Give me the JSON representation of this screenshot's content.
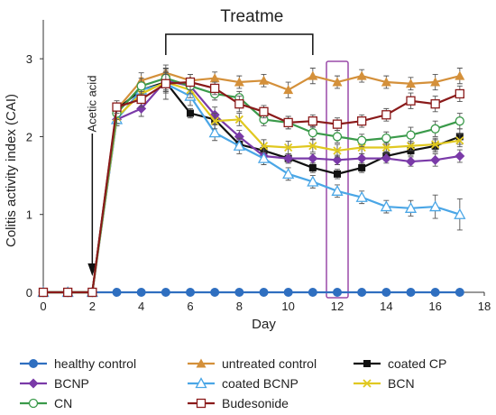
{
  "chart_data": {
    "type": "line",
    "xlabel": "Day",
    "ylabel": "Colitis activity index (CAI)",
    "xlim": [
      0,
      18
    ],
    "ylim": [
      0,
      3.5
    ],
    "xticks": [
      0,
      2,
      4,
      6,
      8,
      10,
      12,
      14,
      16,
      18
    ],
    "yticks": [
      0,
      1,
      2,
      3
    ],
    "grid": false,
    "legend_position": "bottom",
    "annotations": {
      "treatment_label": "Treatme",
      "treatment_range": [
        5,
        11
      ],
      "acetic_label": "Acetic acid",
      "acetic_day": 2,
      "highlight_day": 12
    },
    "x": [
      0,
      1,
      2,
      3,
      4,
      5,
      6,
      7,
      8,
      9,
      10,
      11,
      12,
      13,
      14,
      15,
      16,
      17
    ],
    "series": [
      {
        "name": "healthy control",
        "color": "#2f6fc0",
        "marker": "circle-filled",
        "values": [
          0,
          0,
          0,
          0,
          0,
          0,
          0,
          0,
          0,
          0,
          0,
          0,
          0,
          0,
          0,
          0,
          0,
          0
        ],
        "errors": [
          0,
          0,
          0,
          0,
          0,
          0,
          0,
          0,
          0,
          0,
          0,
          0,
          0,
          0,
          0,
          0,
          0,
          0
        ]
      },
      {
        "name": "untreated control",
        "color": "#d4903a",
        "marker": "triangle-filled",
        "values": [
          0,
          0,
          0,
          2.35,
          2.72,
          2.82,
          2.72,
          2.75,
          2.7,
          2.72,
          2.6,
          2.78,
          2.7,
          2.78,
          2.7,
          2.68,
          2.7,
          2.78
        ],
        "errors": [
          0,
          0,
          0,
          0.08,
          0.1,
          0.1,
          0.08,
          0.08,
          0.08,
          0.08,
          0.1,
          0.1,
          0.08,
          0.08,
          0.08,
          0.08,
          0.1,
          0.1
        ]
      },
      {
        "name": "coated CP",
        "color": "#111111",
        "marker": "square-filled",
        "values": [
          0,
          0,
          0,
          2.35,
          2.6,
          2.7,
          2.3,
          2.22,
          1.9,
          1.82,
          1.72,
          1.6,
          1.52,
          1.6,
          1.75,
          1.82,
          1.88,
          2.0
        ],
        "errors": [
          0,
          0,
          0,
          0.08,
          0.1,
          0.12,
          0.06,
          0.06,
          0.06,
          0.06,
          0.06,
          0.06,
          0.06,
          0.06,
          0.06,
          0.06,
          0.08,
          0.1
        ]
      },
      {
        "name": "BCNP",
        "color": "#7a3aa8",
        "marker": "diamond-filled",
        "values": [
          0,
          0,
          0,
          2.22,
          2.36,
          2.72,
          2.65,
          2.28,
          2.0,
          1.75,
          1.72,
          1.72,
          1.7,
          1.72,
          1.72,
          1.68,
          1.7,
          1.75
        ],
        "errors": [
          0,
          0,
          0,
          0.08,
          0.1,
          0.12,
          0.1,
          0.1,
          0.08,
          0.08,
          0.06,
          0.06,
          0.06,
          0.06,
          0.06,
          0.06,
          0.08,
          0.08
        ]
      },
      {
        "name": "coated BCNP",
        "color": "#4aa6e6",
        "marker": "triangle-open",
        "values": [
          0,
          0,
          0,
          2.22,
          2.6,
          2.68,
          2.52,
          2.05,
          1.88,
          1.72,
          1.52,
          1.42,
          1.3,
          1.22,
          1.1,
          1.08,
          1.1,
          1.0
        ],
        "errors": [
          0,
          0,
          0,
          0.08,
          0.1,
          0.2,
          0.12,
          0.1,
          0.1,
          0.08,
          0.08,
          0.08,
          0.08,
          0.08,
          0.08,
          0.1,
          0.15,
          0.2
        ]
      },
      {
        "name": "BCN",
        "color": "#e0c820",
        "marker": "x",
        "values": [
          0,
          0,
          0,
          2.25,
          2.55,
          2.7,
          2.6,
          2.2,
          2.22,
          1.88,
          1.86,
          1.88,
          1.82,
          1.86,
          1.86,
          1.88,
          1.9,
          1.95
        ],
        "errors": [
          0,
          0,
          0,
          0.08,
          0.1,
          0.12,
          0.1,
          0.1,
          0.08,
          0.08,
          0.08,
          0.08,
          0.08,
          0.08,
          0.06,
          0.06,
          0.08,
          0.08
        ]
      },
      {
        "name": "CN",
        "color": "#3a9a4a",
        "marker": "circle-open",
        "values": [
          0,
          0,
          0,
          2.3,
          2.65,
          2.75,
          2.65,
          2.55,
          2.5,
          2.22,
          2.18,
          2.05,
          2.0,
          1.95,
          1.98,
          2.02,
          2.1,
          2.2
        ],
        "errors": [
          0,
          0,
          0,
          0.08,
          0.1,
          0.12,
          0.1,
          0.08,
          0.08,
          0.08,
          0.08,
          0.08,
          0.08,
          0.08,
          0.08,
          0.1,
          0.1,
          0.1
        ]
      },
      {
        "name": "Budesonide",
        "color": "#8a1a1a",
        "marker": "square-open",
        "values": [
          0,
          0,
          0,
          2.38,
          2.48,
          2.68,
          2.7,
          2.62,
          2.42,
          2.32,
          2.18,
          2.2,
          2.16,
          2.2,
          2.28,
          2.46,
          2.42,
          2.55
        ],
        "errors": [
          0,
          0,
          0,
          0.08,
          0.1,
          0.12,
          0.1,
          0.08,
          0.1,
          0.08,
          0.08,
          0.08,
          0.08,
          0.08,
          0.08,
          0.1,
          0.1,
          0.1
        ]
      }
    ]
  }
}
